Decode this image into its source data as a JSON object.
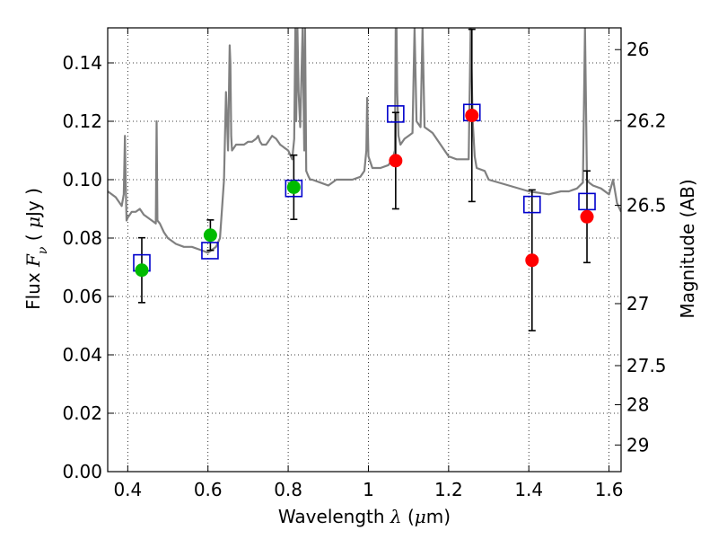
{
  "chart_data": {
    "type": "scatter",
    "xlabel": "Wavelength  λ (μm)",
    "xlabel_parts": {
      "text": "Wavelength  ",
      "sym": "λ",
      "unit_open": " (",
      "unit_sym": "μ",
      "unit_close": "m)"
    },
    "ylabel": "Flux  Fν  ( μJy )",
    "ylabel_parts": {
      "text": "Flux  ",
      "sym": "F",
      "sub": "ν",
      "unit_open": "  (  ",
      "unit_sym": "μ",
      "unit_close": "Jy )"
    },
    "y2label": "Magnitude (AB)",
    "xlim": [
      0.35,
      1.63
    ],
    "ylim": [
      0,
      0.152
    ],
    "x_ticks": [
      {
        "v": 0.4,
        "label": "0.4"
      },
      {
        "v": 0.6,
        "label": "0.6"
      },
      {
        "v": 0.8,
        "label": "0.8"
      },
      {
        "v": 1.0,
        "label": "1"
      },
      {
        "v": 1.2,
        "label": "1.2"
      },
      {
        "v": 1.4,
        "label": "1.4"
      },
      {
        "v": 1.6,
        "label": "1.6"
      }
    ],
    "y_ticks": [
      {
        "v": 0.0,
        "label": "0.00"
      },
      {
        "v": 0.02,
        "label": "0.02"
      },
      {
        "v": 0.04,
        "label": "0.04"
      },
      {
        "v": 0.06,
        "label": "0.06"
      },
      {
        "v": 0.08,
        "label": "0.08"
      },
      {
        "v": 0.1,
        "label": "0.10"
      },
      {
        "v": 0.12,
        "label": "0.12"
      },
      {
        "v": 0.14,
        "label": "0.14"
      }
    ],
    "y2_ticks": [
      {
        "mag": 26,
        "label": "26"
      },
      {
        "mag": 26.2,
        "label": "26.2"
      },
      {
        "mag": 26.5,
        "label": "26.5"
      },
      {
        "mag": 27,
        "label": "27"
      },
      {
        "mag": 27.5,
        "label": "27.5"
      },
      {
        "mag": 28,
        "label": "28"
      },
      {
        "mag": 29,
        "label": "29"
      }
    ],
    "grid": true,
    "template_spectrum": {
      "name": "",
      "color": "#808080",
      "x": [
        0.35,
        0.36,
        0.37,
        0.38,
        0.385,
        0.39,
        0.393,
        0.395,
        0.397,
        0.4,
        0.405,
        0.41,
        0.42,
        0.43,
        0.44,
        0.45,
        0.46,
        0.47,
        0.472,
        0.474,
        0.48,
        0.49,
        0.5,
        0.52,
        0.54,
        0.56,
        0.58,
        0.6,
        0.62,
        0.63,
        0.64,
        0.645,
        0.65,
        0.654,
        0.656,
        0.658,
        0.66,
        0.665,
        0.67,
        0.68,
        0.69,
        0.7,
        0.71,
        0.72,
        0.725,
        0.73,
        0.735,
        0.74,
        0.745,
        0.75,
        0.76,
        0.77,
        0.78,
        0.79,
        0.8,
        0.81,
        0.815,
        0.818,
        0.82,
        0.823,
        0.826,
        0.83,
        0.836,
        0.84,
        0.842,
        0.845,
        0.848,
        0.851,
        0.855,
        0.86,
        0.88,
        0.9,
        0.92,
        0.94,
        0.96,
        0.98,
        0.99,
        0.995,
        0.997,
        1.0,
        1.005,
        1.01,
        1.03,
        1.05,
        1.06,
        1.066,
        1.068,
        1.07,
        1.072,
        1.075,
        1.08,
        1.09,
        1.1,
        1.11,
        1.115,
        1.12,
        1.13,
        1.135,
        1.14,
        1.15,
        1.16,
        1.2,
        1.22,
        1.25,
        1.255,
        1.26,
        1.265,
        1.27,
        1.29,
        1.3,
        1.35,
        1.4,
        1.45,
        1.48,
        1.5,
        1.52,
        1.535,
        1.54,
        1.545,
        1.55,
        1.56,
        1.58,
        1.6,
        1.61,
        1.62,
        1.63
      ],
      "y": [
        0.096,
        0.095,
        0.094,
        0.092,
        0.091,
        0.095,
        0.115,
        0.098,
        0.086,
        0.087,
        0.088,
        0.089,
        0.089,
        0.09,
        0.088,
        0.087,
        0.086,
        0.085,
        0.12,
        0.086,
        0.085,
        0.082,
        0.08,
        0.078,
        0.077,
        0.077,
        0.076,
        0.075,
        0.077,
        0.08,
        0.1,
        0.13,
        0.11,
        0.146,
        0.14,
        0.115,
        0.11,
        0.111,
        0.112,
        0.112,
        0.112,
        0.113,
        0.113,
        0.114,
        0.115,
        0.113,
        0.112,
        0.112,
        0.112,
        0.113,
        0.115,
        0.114,
        0.112,
        0.111,
        0.11,
        0.107,
        0.114,
        0.152,
        0.12,
        0.152,
        0.13,
        0.118,
        0.152,
        0.11,
        0.152,
        0.103,
        0.102,
        0.101,
        0.1,
        0.1,
        0.099,
        0.098,
        0.1,
        0.1,
        0.1,
        0.101,
        0.103,
        0.11,
        0.128,
        0.108,
        0.106,
        0.104,
        0.104,
        0.105,
        0.107,
        0.11,
        0.152,
        0.152,
        0.13,
        0.115,
        0.112,
        0.114,
        0.115,
        0.116,
        0.152,
        0.12,
        0.118,
        0.152,
        0.118,
        0.117,
        0.116,
        0.108,
        0.107,
        0.107,
        0.152,
        0.12,
        0.108,
        0.104,
        0.103,
        0.1,
        0.098,
        0.096,
        0.095,
        0.096,
        0.096,
        0.097,
        0.099,
        0.152,
        0.1,
        0.099,
        0.098,
        0.097,
        0.095,
        0.1,
        0.092,
        0.089
      ]
    },
    "observed": [
      {
        "x": 0.435,
        "y": 0.069,
        "yerr": 0.0111,
        "color": "#00bb00"
      },
      {
        "x": 0.606,
        "y": 0.081,
        "yerr": 0.0052,
        "color": "#00bb00"
      },
      {
        "x": 0.814,
        "y": 0.0974,
        "yerr": 0.011,
        "color": "#00bb00"
      },
      {
        "x": 1.068,
        "y": 0.1065,
        "yerr": 0.0165,
        "color": "#ff0000"
      },
      {
        "x": 1.258,
        "y": 0.122,
        "yerr": 0.0295,
        "color": "#ff0000"
      },
      {
        "x": 1.408,
        "y": 0.0724,
        "yerr": 0.0241,
        "color": "#ff0000"
      },
      {
        "x": 1.545,
        "y": 0.0873,
        "yerr": 0.0157,
        "color": "#ff0000"
      }
    ],
    "model_photometry": {
      "color": "#0000cc",
      "x": [
        0.435,
        0.605,
        0.814,
        1.068,
        1.258,
        1.408,
        1.545
      ],
      "y": [
        0.0715,
        0.0757,
        0.097,
        0.1225,
        0.123,
        0.0915,
        0.0925
      ]
    }
  }
}
